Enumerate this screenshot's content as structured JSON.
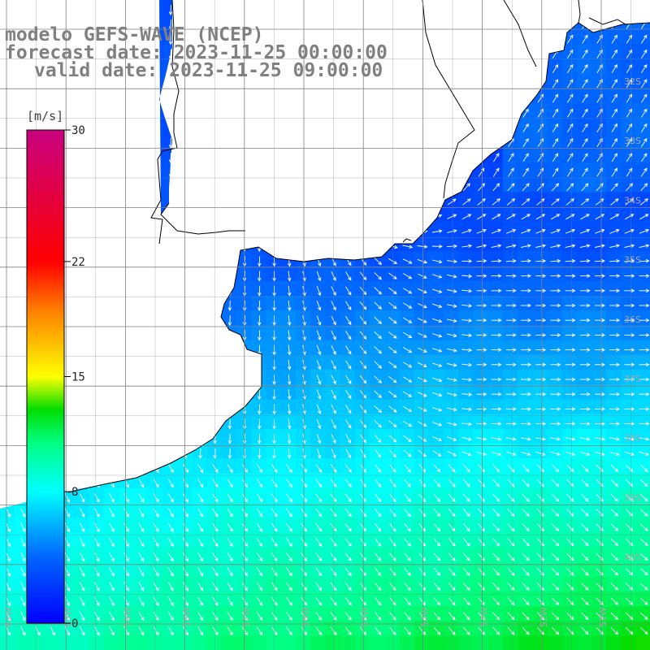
{
  "header": {
    "model": "modelo GEFS-WAVE (NCEP)",
    "forecast": "forecast date: 2023-11-25 00:00:00",
    "valid": "valid date: 2023-11-25 09:00:00"
  },
  "legend": {
    "unit": "[m/s]",
    "ticks": [
      {
        "label": "30",
        "value": 30
      },
      {
        "label": "22",
        "value": 22
      },
      {
        "label": "15",
        "value": 15
      },
      {
        "label": "8",
        "value": 8
      },
      {
        "label": "0",
        "value": 0
      }
    ],
    "range": [
      0,
      30
    ],
    "stops": [
      {
        "value": 0,
        "color": "#0000ff"
      },
      {
        "value": 4,
        "color": "#0064ff"
      },
      {
        "value": 8,
        "color": "#00ffff"
      },
      {
        "value": 11,
        "color": "#00ff80"
      },
      {
        "value": 13,
        "color": "#00dd00"
      },
      {
        "value": 15,
        "color": "#ffff00"
      },
      {
        "value": 19,
        "color": "#ff8000"
      },
      {
        "value": 22,
        "color": "#ff0000"
      },
      {
        "value": 30,
        "color": "#c80080"
      }
    ]
  },
  "map": {
    "lat_labels": [
      "32S",
      "33S",
      "34S",
      "35S",
      "36S",
      "37S",
      "38S",
      "39S",
      "40S"
    ],
    "lon_labels": [
      "61W",
      "60W",
      "59W",
      "58W",
      "57W",
      "56W",
      "55W",
      "54W",
      "53W",
      "52W",
      "51W"
    ],
    "grid": true,
    "land_color": "#ffffff",
    "arrow_color": "#ffffff",
    "grid_color": "#808080",
    "coast_color": "#000000"
  }
}
